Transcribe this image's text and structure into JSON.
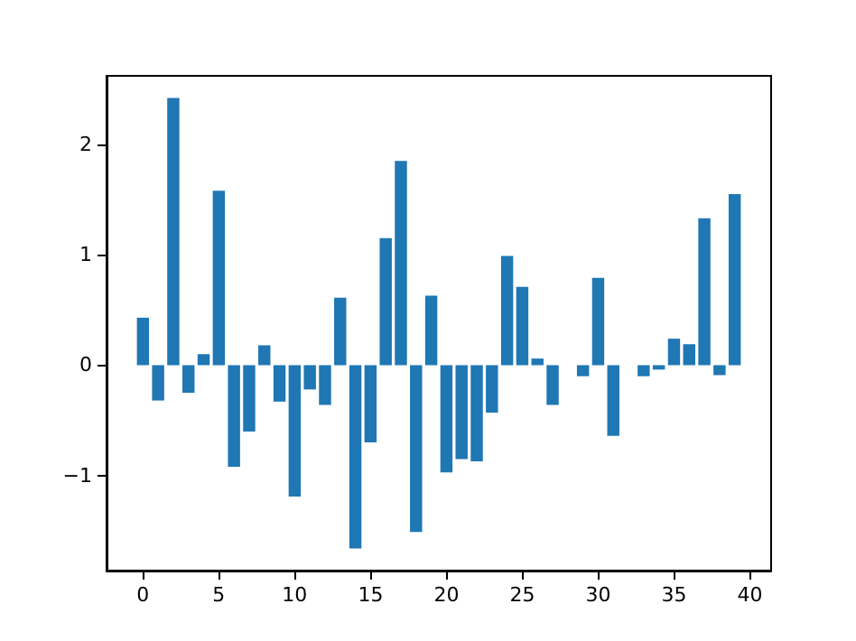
{
  "chart_data": {
    "type": "bar",
    "x": [
      0,
      1,
      2,
      3,
      4,
      5,
      6,
      7,
      8,
      9,
      10,
      11,
      12,
      13,
      14,
      15,
      16,
      17,
      18,
      19,
      20,
      21,
      22,
      23,
      24,
      25,
      26,
      27,
      28,
      29,
      30,
      31,
      32,
      33,
      34,
      35,
      36,
      37,
      38,
      39
    ],
    "values": [
      0.43,
      -0.32,
      2.42,
      -0.25,
      0.1,
      1.58,
      -0.92,
      -0.6,
      0.18,
      -0.33,
      -1.19,
      -0.22,
      -0.36,
      0.61,
      -1.66,
      -0.7,
      1.15,
      1.85,
      -1.51,
      0.63,
      -0.97,
      -0.85,
      -0.87,
      -0.43,
      0.99,
      0.71,
      0.06,
      -0.36,
      0,
      -0.1,
      0.79,
      -0.64,
      0,
      -0.1,
      -0.04,
      0.24,
      0.19,
      1.33,
      -0.09,
      1.55
    ],
    "color": "#1f77b4",
    "xlim": [
      -2.4,
      41.4
    ],
    "xticks": [
      0,
      5,
      10,
      15,
      20,
      25,
      30,
      35,
      40
    ],
    "ylim": [
      -1.86,
      2.62
    ],
    "yticks": [
      -1,
      0,
      1,
      2
    ],
    "grid": false
  }
}
